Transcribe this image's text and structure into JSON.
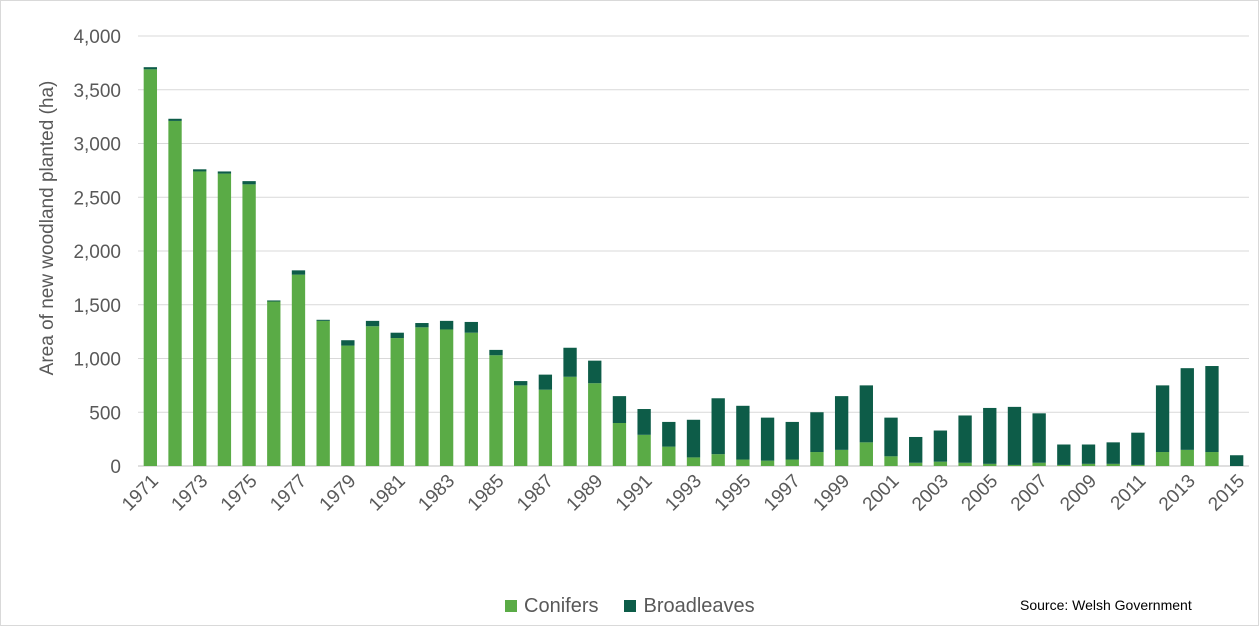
{
  "chart_data": {
    "type": "bar",
    "stacked": true,
    "title": "",
    "ylabel": "Area of new woodland planted (ha)",
    "xlabel": "",
    "ylim": [
      0,
      4000
    ],
    "yticks": [
      0,
      500,
      1000,
      1500,
      2000,
      2500,
      3000,
      3500,
      4000
    ],
    "ytick_labels": [
      "0",
      "500",
      "1,000",
      "1,500",
      "2,000",
      "2,500",
      "3,000",
      "3,500",
      "4,000"
    ],
    "grid": "horizontal",
    "legend_position": "bottom",
    "categories": [
      "1971",
      "1972",
      "1973",
      "1974",
      "1975",
      "1976",
      "1977",
      "1978",
      "1979",
      "1980",
      "1981",
      "1982",
      "1983",
      "1984",
      "1985",
      "1986",
      "1987",
      "1988",
      "1989",
      "1990",
      "1991",
      "1992",
      "1993",
      "1994",
      "1995",
      "1996",
      "1997",
      "1998",
      "1999",
      "2000",
      "2001",
      "2002",
      "2003",
      "2004",
      "2005",
      "2006",
      "2007",
      "2008",
      "2009",
      "2010",
      "2011",
      "2012",
      "2013",
      "2014",
      "2015"
    ],
    "x_tick_labels": [
      "1971",
      "1973",
      "1975",
      "1977",
      "1979",
      "1981",
      "1983",
      "1985",
      "1987",
      "1989",
      "1991",
      "1993",
      "1995",
      "1997",
      "1999",
      "2001",
      "2003",
      "2005",
      "2007",
      "2009",
      "2011",
      "2013",
      "2015"
    ],
    "series": [
      {
        "name": "Conifers",
        "color": "#5aab46",
        "values": [
          3690,
          3210,
          2740,
          2720,
          2620,
          1530,
          1780,
          1350,
          1120,
          1300,
          1190,
          1290,
          1270,
          1240,
          1030,
          750,
          710,
          830,
          770,
          400,
          290,
          180,
          80,
          110,
          60,
          50,
          60,
          130,
          150,
          220,
          90,
          30,
          40,
          30,
          20,
          10,
          30,
          10,
          20,
          20,
          10,
          130,
          150,
          130,
          0
        ]
      },
      {
        "name": "Broadleaves",
        "color": "#0d5c48",
        "values": [
          20,
          20,
          20,
          20,
          30,
          10,
          40,
          10,
          50,
          50,
          50,
          40,
          80,
          100,
          50,
          40,
          140,
          270,
          210,
          250,
          240,
          230,
          350,
          520,
          500,
          400,
          350,
          370,
          500,
          530,
          360,
          240,
          290,
          440,
          520,
          540,
          460,
          190,
          180,
          200,
          300,
          620,
          760,
          800,
          100
        ]
      }
    ]
  },
  "source": "Source:  Welsh Government"
}
